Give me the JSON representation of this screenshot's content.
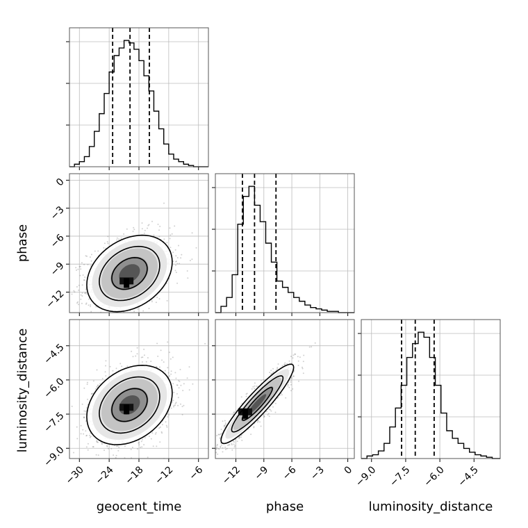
{
  "chart_data": {
    "type": "corner",
    "title": "",
    "parameters": [
      "geocent_time",
      "phase",
      "luminosity_distance"
    ],
    "ranges": {
      "geocent_time": [
        -32,
        -4
      ],
      "phase": [
        -14.2,
        0.7
      ],
      "luminosity_distance": [
        -9.45,
        -3.35
      ]
    },
    "ticks": {
      "geocent_time": [
        -30,
        -24,
        -18,
        -12,
        -6
      ],
      "phase": [
        -12,
        -9,
        -6,
        -3,
        0
      ],
      "luminosity_distance": [
        -9.0,
        -7.5,
        -6.0,
        -4.5
      ]
    },
    "tick_labels": {
      "geocent_time": [
        "−30",
        "−24",
        "−18",
        "−12",
        "−6"
      ],
      "phase": [
        "−12",
        "−9",
        "−6",
        "−3",
        "0"
      ],
      "luminosity_distance": [
        "−9.0",
        "−7.5",
        "−6.0",
        "−4.5"
      ]
    },
    "quantiles": {
      "geocent_time": [
        -23.3,
        -19.8,
        -15.9
      ],
      "phase": [
        -11.3,
        -10.0,
        -7.7
      ],
      "luminosity_distance": [
        -7.68,
        -7.08,
        -6.25
      ]
    },
    "histograms": {
      "geocent_time": {
        "edges": [
          -32,
          -31,
          -30,
          -29,
          -28,
          -27,
          -26,
          -25,
          -24,
          -23,
          -22,
          -21,
          -20,
          -19,
          -18,
          -17,
          -16,
          -15,
          -14,
          -13,
          -12,
          -11,
          -10,
          -9,
          -8,
          -7,
          -6,
          -5,
          -4
        ],
        "counts": [
          0,
          2,
          4,
          8,
          16,
          28,
          42,
          58,
          75,
          88,
          94,
          100,
          98,
          93,
          84,
          72,
          60,
          44,
          30,
          18,
          10,
          6,
          4,
          2,
          1,
          0,
          0,
          0
        ]
      },
      "phase": {
        "edges": [
          -14.2,
          -13.6,
          -13.0,
          -12.4,
          -11.8,
          -11.2,
          -10.6,
          -10.0,
          -9.4,
          -8.8,
          -8.2,
          -7.6,
          -7.0,
          -6.4,
          -5.8,
          -5.2,
          -4.6,
          -4.0,
          -3.4,
          -2.8,
          -2.2,
          -1.6,
          -1.0,
          -0.4,
          0.2,
          0.7
        ],
        "counts": [
          0,
          5,
          12,
          30,
          70,
          92,
          100,
          85,
          72,
          55,
          40,
          25,
          20,
          16,
          12,
          9,
          6,
          4,
          3,
          2,
          1,
          1,
          0,
          0,
          0
        ]
      },
      "luminosity_distance": {
        "edges": [
          -9.45,
          -9.2,
          -8.95,
          -8.7,
          -8.45,
          -8.2,
          -7.95,
          -7.7,
          -7.45,
          -7.2,
          -6.95,
          -6.7,
          -6.45,
          -6.2,
          -5.95,
          -5.7,
          -5.45,
          -5.2,
          -4.95,
          -4.7,
          -4.45,
          -4.2,
          -3.95,
          -3.7,
          -3.45,
          -3.35
        ],
        "counts": [
          0,
          2,
          3,
          6,
          12,
          25,
          40,
          58,
          80,
          91,
          100,
          96,
          80,
          58,
          36,
          22,
          16,
          12,
          8,
          5,
          3,
          2,
          1,
          0,
          0
        ]
      }
    },
    "joint": {
      "phase_vs_geocent_time": {
        "center": [
          -19.9,
          -10.0
        ],
        "peak": [
          -20.5,
          -10.8
        ],
        "sigma": [
          4.2,
          2.0
        ],
        "correlation": 0.3
      },
      "luminosity_distance_vs_geocent_time": {
        "center": [
          -19.9,
          -7.1
        ],
        "peak": [
          -20.5,
          -7.2
        ],
        "sigma": [
          4.2,
          0.85
        ],
        "correlation": 0.3
      },
      "luminosity_distance_vs_phase": {
        "center": [
          -9.7,
          -7.05
        ],
        "peak": [
          -11.0,
          -7.4
        ],
        "sigma": [
          1.9,
          0.85
        ],
        "correlation": 0.92
      }
    },
    "grid": true,
    "samples_drawn": "gray scatter points behind density shading and 3 contour levels"
  }
}
